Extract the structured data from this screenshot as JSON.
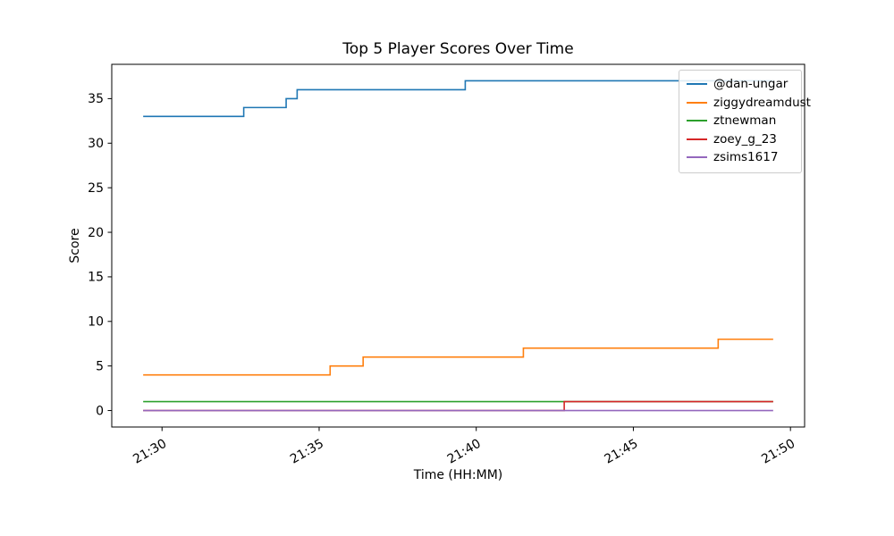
{
  "chart_data": {
    "type": "line",
    "step_mode": "post",
    "title": "Top 5 Player Scores Over Time",
    "xlabel": "Time (HH:MM)",
    "ylabel": "Score",
    "grid": false,
    "legend_position": "upper right",
    "x_unit": "minutes_past_21:00",
    "xlim": [
      28.4,
      50.45
    ],
    "ylim": [
      -1.85,
      38.85
    ],
    "x_ticks": [
      {
        "value": 30,
        "label": "21:30"
      },
      {
        "value": 35,
        "label": "21:35"
      },
      {
        "value": 40,
        "label": "21:40"
      },
      {
        "value": 45,
        "label": "21:45"
      },
      {
        "value": 50,
        "label": "21:50"
      }
    ],
    "y_ticks": [
      {
        "value": 0,
        "label": "0"
      },
      {
        "value": 5,
        "label": "5"
      },
      {
        "value": 10,
        "label": "10"
      },
      {
        "value": 15,
        "label": "15"
      },
      {
        "value": 20,
        "label": "20"
      },
      {
        "value": 25,
        "label": "25"
      },
      {
        "value": 30,
        "label": "30"
      },
      {
        "value": 35,
        "label": "35"
      }
    ],
    "series": [
      {
        "name": "@dan-ungar",
        "color": "#1f77b4",
        "points": [
          [
            29.4,
            33
          ],
          [
            32.6,
            34
          ],
          [
            33.95,
            35
          ],
          [
            34.3,
            36
          ],
          [
            39.65,
            37
          ],
          [
            49.45,
            37
          ]
        ]
      },
      {
        "name": "ziggydreamdust",
        "color": "#ff7f0e",
        "points": [
          [
            29.4,
            4
          ],
          [
            35.35,
            5
          ],
          [
            36.4,
            6
          ],
          [
            41.5,
            7
          ],
          [
            47.7,
            8
          ],
          [
            49.45,
            8
          ]
        ]
      },
      {
        "name": "ztnewman",
        "color": "#2ca02c",
        "points": [
          [
            29.4,
            1
          ],
          [
            49.45,
            1
          ]
        ]
      },
      {
        "name": "zoey_g_23",
        "color": "#d62728",
        "points": [
          [
            29.4,
            0
          ],
          [
            42.8,
            1
          ],
          [
            49.45,
            1
          ]
        ]
      },
      {
        "name": "zsims1617",
        "color": "#9467bd",
        "points": [
          [
            29.4,
            0
          ],
          [
            49.45,
            0
          ]
        ]
      }
    ]
  }
}
